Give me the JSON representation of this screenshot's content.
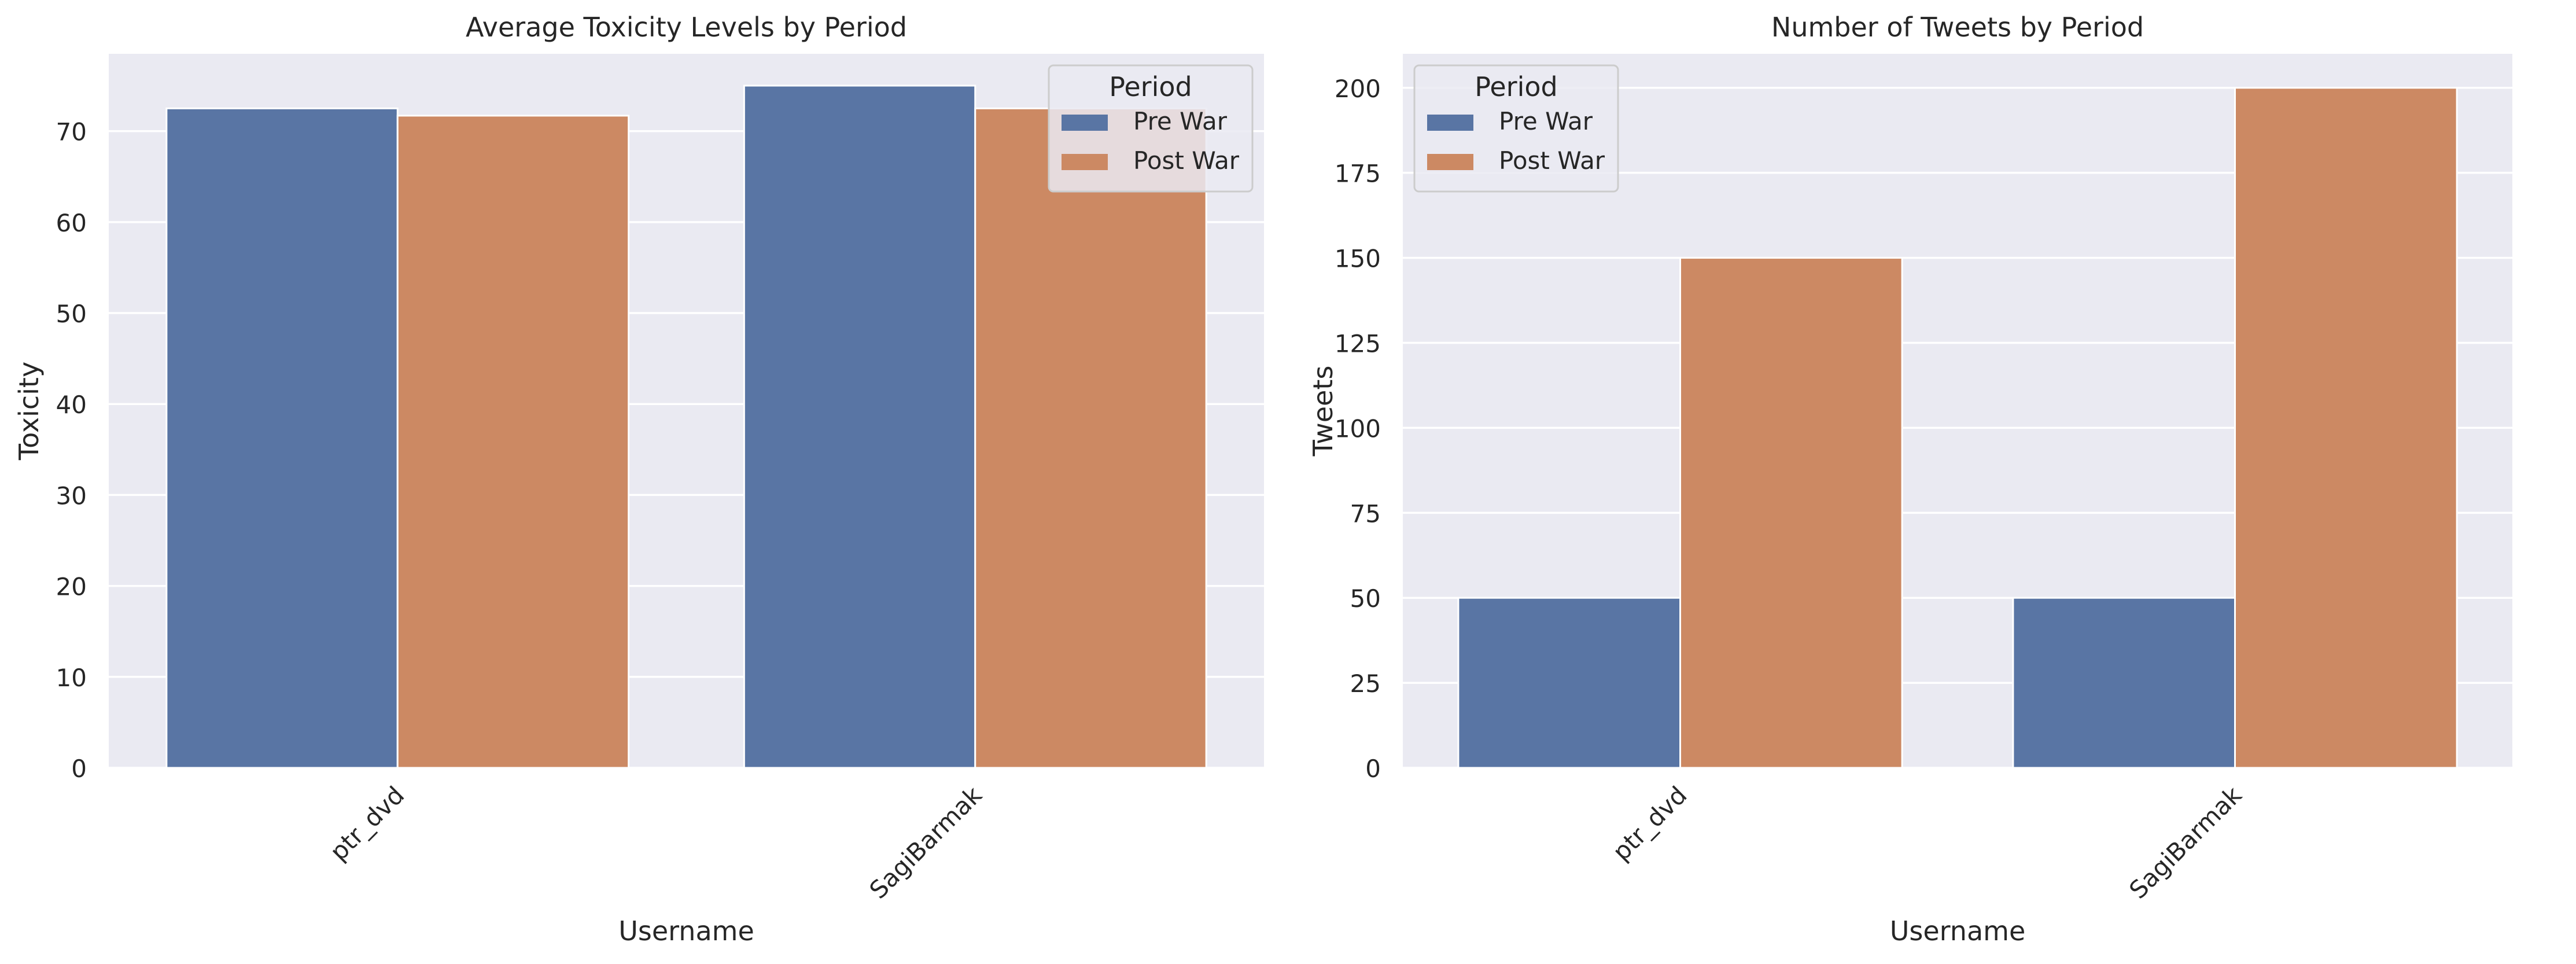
{
  "chart_data": [
    {
      "type": "bar",
      "title": "Average Toxicity Levels by Period",
      "xlabel": "Username",
      "ylabel": "Toxicity",
      "categories": [
        "ptr_dvd",
        "SagiBarmak"
      ],
      "series": [
        {
          "name": "Pre War",
          "values": [
            72.5,
            75.0
          ]
        },
        {
          "name": "Post War",
          "values": [
            71.7,
            72.5
          ]
        }
      ],
      "ylim": [
        0,
        78.5
      ],
      "yticks": [
        0,
        10,
        20,
        30,
        40,
        50,
        60,
        70
      ],
      "grid": true,
      "legend": {
        "title": "Period",
        "position": "top-right"
      }
    },
    {
      "type": "bar",
      "title": "Number of Tweets by Period",
      "xlabel": "Username",
      "ylabel": "Tweets",
      "categories": [
        "ptr_dvd",
        "SagiBarmak"
      ],
      "series": [
        {
          "name": "Pre War",
          "values": [
            50,
            50
          ]
        },
        {
          "name": "Post War",
          "values": [
            150,
            200
          ]
        }
      ],
      "ylim": [
        0,
        210
      ],
      "yticks": [
        0,
        25,
        50,
        75,
        100,
        125,
        150,
        175,
        200
      ],
      "grid": true,
      "legend": {
        "title": "Period",
        "position": "top-left"
      }
    }
  ],
  "colors": {
    "Pre War": "#5975a4",
    "Post War": "#cc8963",
    "axes_background": "#eaeaf2",
    "grid": "#ffffff",
    "text": "#262626"
  }
}
